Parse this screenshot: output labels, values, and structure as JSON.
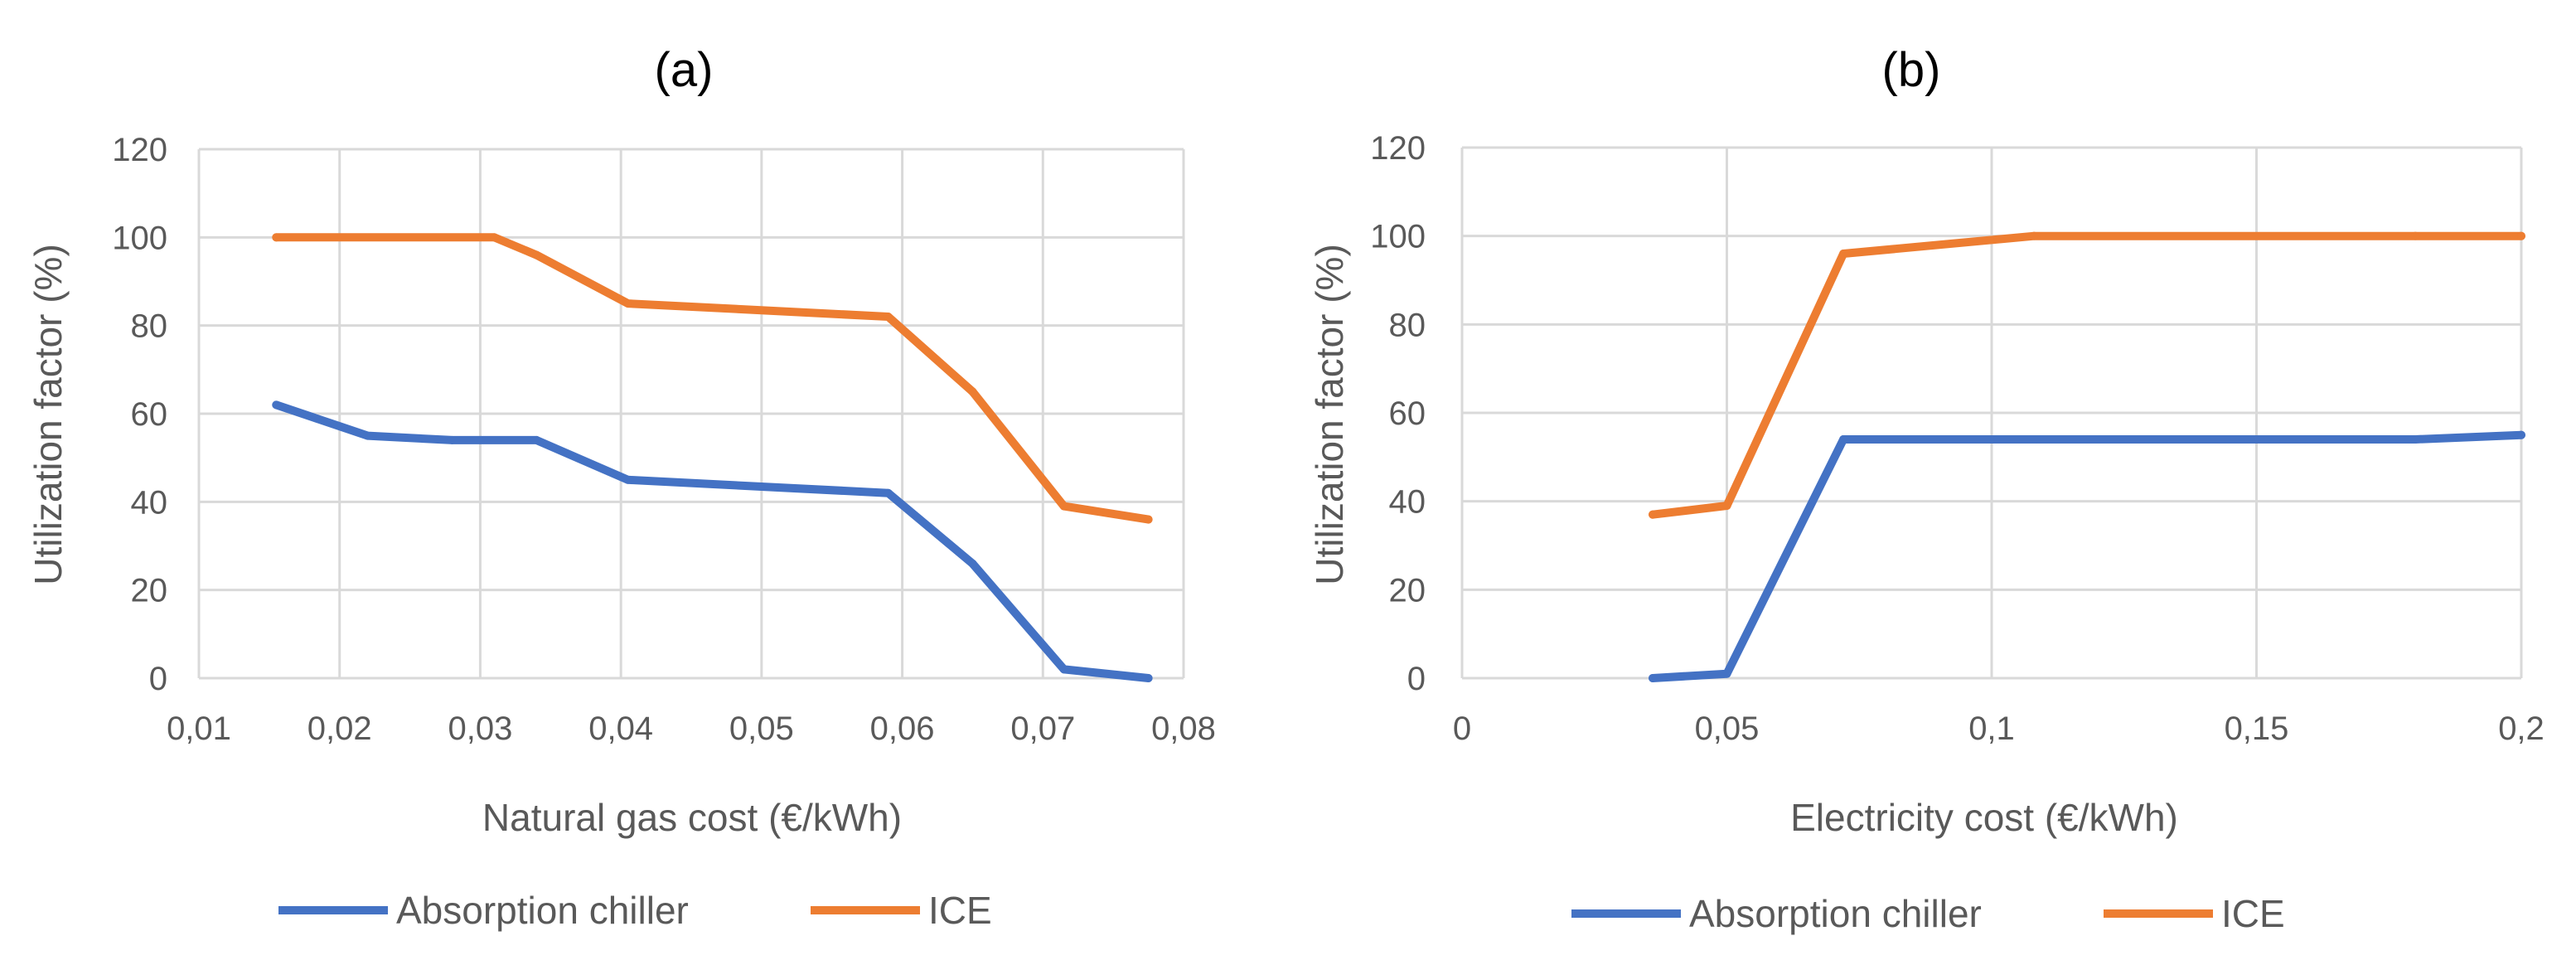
{
  "chart_data": [
    {
      "type": "line",
      "title": "(a)",
      "xlabel": "Natural gas cost (€/kWh)",
      "ylabel": "Utilization factor (%)",
      "xlim": [
        0.01,
        0.08
      ],
      "ylim": [
        0,
        120
      ],
      "xticks": [
        0.01,
        0.02,
        0.03,
        0.04,
        0.05,
        0.06,
        0.07,
        0.08
      ],
      "xtick_labels": [
        "0,01",
        "0,02",
        "0,03",
        "0,04",
        "0,05",
        "0,06",
        "0,07",
        "0,08"
      ],
      "yticks": [
        0,
        20,
        40,
        60,
        80,
        100,
        120
      ],
      "ytick_labels": [
        "0",
        "20",
        "40",
        "60",
        "80",
        "100",
        "120"
      ],
      "grid": true,
      "legend_position": "bottom",
      "series": [
        {
          "name": "Absorption chiller",
          "color": "#4472C4",
          "x": [
            0.0155,
            0.022,
            0.028,
            0.034,
            0.0405,
            0.059,
            0.065,
            0.0715,
            0.0775
          ],
          "y": [
            62,
            55,
            54,
            54,
            45,
            42,
            26,
            2,
            0
          ]
        },
        {
          "name": "ICE",
          "color": "#ED7D31",
          "x": [
            0.0155,
            0.031,
            0.034,
            0.0405,
            0.059,
            0.065,
            0.0715,
            0.0775
          ],
          "y": [
            100,
            100,
            96,
            85,
            82,
            65,
            39,
            36
          ]
        }
      ]
    },
    {
      "type": "line",
      "title": "(b)",
      "xlabel": "Electricity cost (€/kWh)",
      "ylabel": "Utilization factor (%)",
      "xlim": [
        0,
        0.2
      ],
      "ylim": [
        0,
        120
      ],
      "xticks": [
        0,
        0.05,
        0.1,
        0.15,
        0.2
      ],
      "xtick_labels": [
        "0",
        "0,05",
        "0,1",
        "0,15",
        "0,2"
      ],
      "yticks": [
        0,
        20,
        40,
        60,
        80,
        100,
        120
      ],
      "ytick_labels": [
        "0",
        "20",
        "40",
        "60",
        "80",
        "100",
        "120"
      ],
      "grid": true,
      "legend_position": "bottom",
      "series": [
        {
          "name": "Absorption chiller",
          "color": "#4472C4",
          "x": [
            0.036,
            0.05,
            0.072,
            0.108,
            0.18,
            0.2
          ],
          "y": [
            0,
            1,
            54,
            54,
            54,
            55
          ]
        },
        {
          "name": "ICE",
          "color": "#ED7D31",
          "x": [
            0.036,
            0.05,
            0.072,
            0.108,
            0.18,
            0.2
          ],
          "y": [
            37,
            39,
            96,
            100,
            100,
            100
          ]
        }
      ]
    }
  ]
}
